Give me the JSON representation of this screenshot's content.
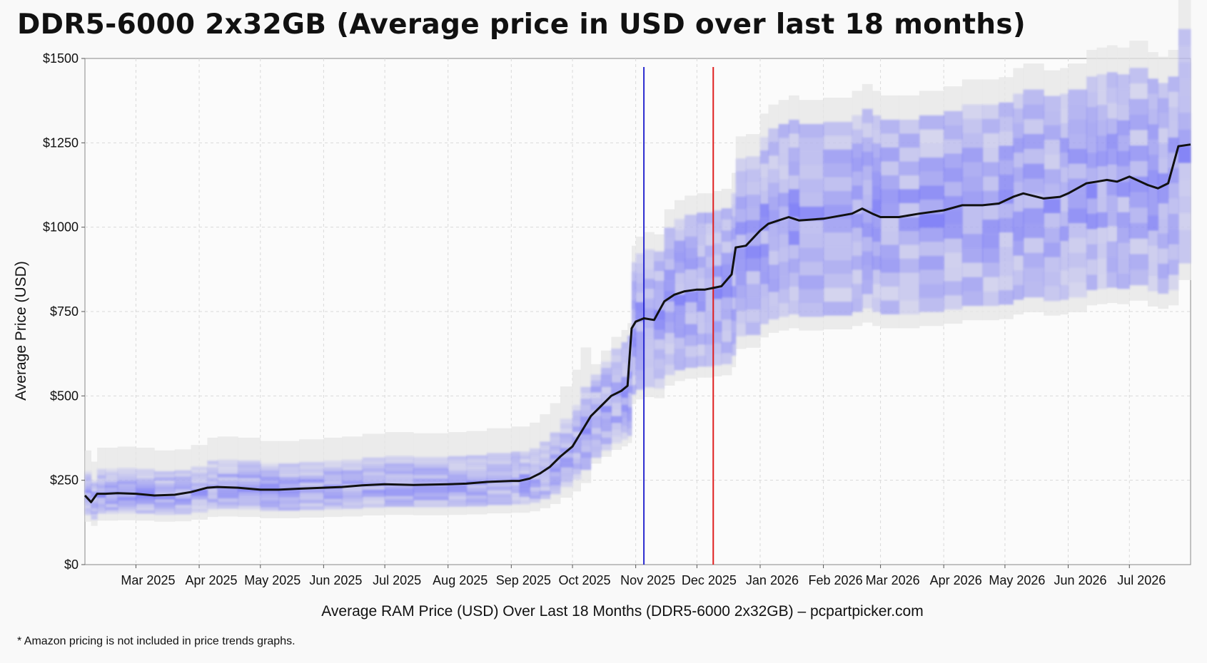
{
  "title": "DDR5-6000 2x32GB (Average price in USD over last 18 months)",
  "footnote": "* Amazon pricing is not included in price trends graphs.",
  "colors": {
    "line": "#111111",
    "density": "#3a3aff",
    "range": "#e6e6e6",
    "marker_blue": "#2b2bd0",
    "marker_red": "#e02020",
    "grid": "#d9d9d9"
  },
  "chart_data": {
    "type": "line",
    "title": "DDR5-6000 2x32GB (Average price in USD over last 18 months)",
    "xlabel": "Average RAM Price (USD) Over Last 18 Months (DDR5-6000 2x32GB) – pcpartpicker.com",
    "ylabel": "Average Price (USD)",
    "ylim": [
      0,
      1500
    ],
    "xlim": [
      "2025-02-04",
      "2026-07-31"
    ],
    "grid": true,
    "y_ticks": [
      {
        "value": 0,
        "label": "$0"
      },
      {
        "value": 250,
        "label": "$250"
      },
      {
        "value": 500,
        "label": "$500"
      },
      {
        "value": 750,
        "label": "$750"
      },
      {
        "value": 1000,
        "label": "$1000"
      },
      {
        "value": 1250,
        "label": "$1250"
      },
      {
        "value": 1500,
        "label": "$1500"
      }
    ],
    "x_ticks": [
      {
        "date": "2025-03-01",
        "label": "Mar 2025"
      },
      {
        "date": "2025-04-01",
        "label": "Apr 2025"
      },
      {
        "date": "2025-05-01",
        "label": "May 2025"
      },
      {
        "date": "2025-06-01",
        "label": "Jun 2025"
      },
      {
        "date": "2025-07-01",
        "label": "Jul 2025"
      },
      {
        "date": "2025-08-01",
        "label": "Aug 2025"
      },
      {
        "date": "2025-09-01",
        "label": "Sep 2025"
      },
      {
        "date": "2025-10-01",
        "label": "Oct 2025"
      },
      {
        "date": "2025-11-01",
        "label": "Nov 2025"
      },
      {
        "date": "2025-12-01",
        "label": "Dec 2025"
      },
      {
        "date": "2026-01-01",
        "label": "Jan 2026"
      },
      {
        "date": "2026-02-01",
        "label": "Feb 2026"
      },
      {
        "date": "2026-03-01",
        "label": "Mar 2026"
      },
      {
        "date": "2026-04-01",
        "label": "Apr 2026"
      },
      {
        "date": "2026-05-01",
        "label": "May 2026"
      },
      {
        "date": "2026-06-01",
        "label": "Jun 2026"
      },
      {
        "date": "2026-07-01",
        "label": "Jul 2026"
      }
    ],
    "vertical_markers": [
      {
        "date": "2025-11-05",
        "color": "#2b2bd0"
      },
      {
        "date": "2025-12-09",
        "color": "#e02020"
      }
    ],
    "series": [
      {
        "x": [
          "2025-02-04",
          "2025-02-07",
          "2025-02-10",
          "2025-02-14",
          "2025-02-20",
          "2025-03-01",
          "2025-03-10",
          "2025-03-20",
          "2025-03-28",
          "2025-04-05",
          "2025-04-10",
          "2025-04-20",
          "2025-05-01",
          "2025-05-10",
          "2025-05-20",
          "2025-06-01",
          "2025-06-10",
          "2025-06-20",
          "2025-07-01",
          "2025-07-15",
          "2025-08-01",
          "2025-08-10",
          "2025-08-20",
          "2025-09-01",
          "2025-09-05",
          "2025-09-10",
          "2025-09-15",
          "2025-09-20",
          "2025-09-25",
          "2025-10-01",
          "2025-10-05",
          "2025-10-10",
          "2025-10-15",
          "2025-10-20",
          "2025-10-25",
          "2025-10-28",
          "2025-10-30",
          "2025-11-01",
          "2025-11-05",
          "2025-11-10",
          "2025-11-15",
          "2025-11-20",
          "2025-11-25",
          "2025-12-01",
          "2025-12-05",
          "2025-12-09",
          "2025-12-13",
          "2025-12-18",
          "2025-12-20",
          "2025-12-25",
          "2026-01-01",
          "2026-01-05",
          "2026-01-10",
          "2026-01-15",
          "2026-01-20",
          "2026-02-01",
          "2026-02-15",
          "2026-02-20",
          "2026-02-25",
          "2026-03-01",
          "2026-03-10",
          "2026-03-20",
          "2026-04-01",
          "2026-04-10",
          "2026-04-20",
          "2026-04-28",
          "2026-05-05",
          "2026-05-10",
          "2026-05-20",
          "2026-05-28",
          "2026-06-01",
          "2026-06-10",
          "2026-06-15",
          "2026-06-20",
          "2026-06-25",
          "2026-07-01",
          "2026-07-10",
          "2026-07-15",
          "2026-07-20",
          "2026-07-25",
          "2026-07-31"
        ],
        "y": [
          205,
          185,
          210,
          210,
          212,
          210,
          205,
          207,
          215,
          228,
          230,
          228,
          222,
          222,
          225,
          228,
          230,
          235,
          238,
          236,
          238,
          240,
          245,
          248,
          248,
          255,
          270,
          290,
          320,
          350,
          390,
          440,
          470,
          500,
          515,
          530,
          700,
          720,
          730,
          725,
          780,
          800,
          810,
          815,
          815,
          820,
          825,
          860,
          940,
          945,
          990,
          1010,
          1020,
          1030,
          1020,
          1025,
          1040,
          1055,
          1040,
          1030,
          1030,
          1040,
          1050,
          1065,
          1065,
          1070,
          1090,
          1100,
          1085,
          1090,
          1100,
          1130,
          1135,
          1140,
          1135,
          1150,
          1125,
          1115,
          1130,
          1240,
          1245
        ]
      }
    ]
  }
}
